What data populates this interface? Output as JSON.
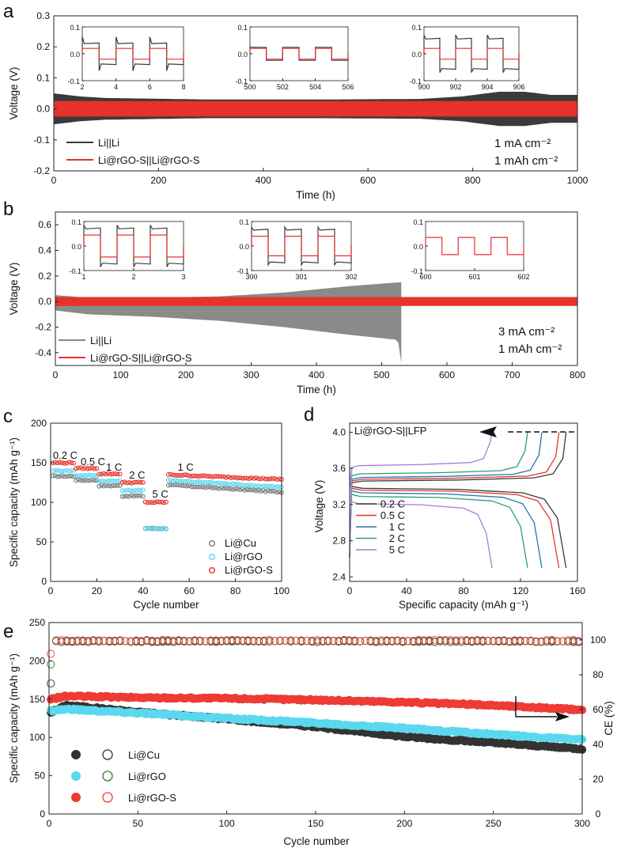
{
  "figure": {
    "labels": {
      "a": "a",
      "b": "b",
      "c": "c",
      "d": "d",
      "e": "e"
    }
  },
  "colors": {
    "black": "#3a3a3a",
    "red": "#e8312a",
    "cyan": "#5ad8ee",
    "blue": "#1f77b4",
    "green": "#2e9e72",
    "purple": "#a57fd0",
    "gray": "#8a8a8a"
  },
  "chart_data": [
    {
      "id": "a",
      "type": "line",
      "xlabel": "Time (h)",
      "ylabel": "Voltage (V)",
      "xlim": [
        0,
        1000
      ],
      "ylim": [
        -0.2,
        0.3
      ],
      "xticks": [
        "0",
        "200",
        "400",
        "600",
        "800",
        "1000"
      ],
      "yticks": [
        "-0.2",
        "-0.1",
        "0.0",
        "0.1",
        "0.2",
        "0.3"
      ],
      "series": [
        {
          "name": "Li||Li",
          "color": "#3a3a3a",
          "envelope_x": [
            0,
            50,
            100,
            300,
            500,
            700,
            780,
            850,
            900,
            950,
            1000
          ],
          "envelope_amp": [
            0.05,
            0.04,
            0.035,
            0.03,
            0.03,
            0.032,
            0.04,
            0.055,
            0.055,
            0.045,
            0.045
          ]
        },
        {
          "name": "Li@rGO-S||Li@rGO-S",
          "color": "#e8312a",
          "envelope_x": [
            0,
            1000
          ],
          "envelope_amp": [
            0.025,
            0.025
          ]
        }
      ],
      "conditions": [
        "1 mA cm⁻²",
        "1 mAh cm⁻²"
      ],
      "insets": [
        {
          "xlim": [
            2,
            8
          ],
          "ylim": [
            -0.1,
            0.1
          ],
          "xticks": [
            "2",
            "4",
            "6",
            "8"
          ],
          "yticks": [
            "-0.1",
            "0.0",
            "0.1"
          ],
          "black_amp": 0.038,
          "red_amp": 0.02,
          "overshoot": 0.025
        },
        {
          "xlim": [
            500,
            506
          ],
          "ylim": [
            -0.1,
            0.1
          ],
          "xticks": [
            "500",
            "502",
            "504",
            "506"
          ],
          "yticks": [
            "-0.1",
            "0.0",
            "0.1"
          ],
          "black_amp": 0.024,
          "red_amp": 0.02,
          "overshoot": 0.0
        },
        {
          "xlim": [
            900,
            906
          ],
          "ylim": [
            -0.1,
            0.1
          ],
          "xticks": [
            "900",
            "902",
            "904",
            "906"
          ],
          "yticks": [
            "-0.1",
            "0.0",
            "0.1"
          ],
          "black_amp": 0.055,
          "red_amp": 0.02,
          "overshoot": 0.015
        }
      ]
    },
    {
      "id": "b",
      "type": "line",
      "xlabel": "Time (h)",
      "ylabel": "Voltage (V)",
      "xlim": [
        0,
        800
      ],
      "ylim": [
        -0.5,
        0.7
      ],
      "xticks": [
        "0",
        "100",
        "200",
        "300",
        "400",
        "500",
        "600",
        "700",
        "800"
      ],
      "yticks": [
        "-0.4",
        "-0.2",
        "0.0",
        "0.2",
        "0.4",
        "0.6"
      ],
      "series": [
        {
          "name": "Li||Li",
          "color": "#8a8a8a",
          "short_circuit_at": 530,
          "envelope_x": [
            0,
            50,
            150,
            250,
            350,
            450,
            525,
            530
          ],
          "envelope_upper": [
            0.05,
            0.03,
            0.03,
            0.04,
            0.07,
            0.12,
            0.15,
            0.15
          ],
          "envelope_lower": [
            -0.07,
            -0.1,
            -0.12,
            -0.15,
            -0.2,
            -0.26,
            -0.3,
            -0.48
          ]
        },
        {
          "name": "Li@rGO-S||Li@rGO-S",
          "color": "#e8312a",
          "envelope_x": [
            0,
            800
          ],
          "envelope_amp": [
            0.035,
            0.035
          ]
        }
      ],
      "conditions": [
        "3 mA cm⁻²",
        "1 mAh cm⁻²"
      ],
      "insets": [
        {
          "xlim": [
            1,
            3
          ],
          "ylim": [
            -0.1,
            0.1
          ],
          "xticks": [
            "1",
            "2",
            "3"
          ],
          "yticks": [
            "-0.1",
            "0.0",
            "0.1"
          ],
          "black_amp": 0.07,
          "red_amp": 0.045,
          "overshoot": 0.015
        },
        {
          "xlim": [
            300,
            302
          ],
          "ylim": [
            -0.1,
            0.1
          ],
          "xticks": [
            "300",
            "301",
            "302"
          ],
          "yticks": [
            "-0.1",
            "0.0",
            "0.1"
          ],
          "black_amp": 0.065,
          "red_amp": 0.04,
          "overshoot": 0.012
        },
        {
          "xlim": [
            600,
            602
          ],
          "ylim": [
            -0.1,
            0.1
          ],
          "xticks": [
            "600",
            "601",
            "602"
          ],
          "yticks": [
            "-0.1",
            "0.0",
            "0.1"
          ],
          "black_amp": 0.0,
          "red_amp": 0.035,
          "overshoot": 0.0
        }
      ]
    },
    {
      "id": "c",
      "type": "scatter",
      "xlabel": "Cycle number",
      "ylabel": "Specific capacity (mAh g⁻¹)",
      "xlim": [
        0,
        100
      ],
      "ylim": [
        0,
        200
      ],
      "xticks": [
        "0",
        "20",
        "40",
        "60",
        "80",
        "100"
      ],
      "yticks": [
        "0",
        "50",
        "100",
        "150",
        "200"
      ],
      "rate_labels": [
        {
          "text": "0.2 C",
          "x": 1,
          "y": 155
        },
        {
          "text": "0.5 C",
          "x": 13,
          "y": 147
        },
        {
          "text": "1 C",
          "x": 24,
          "y": 140
        },
        {
          "text": "2 C",
          "x": 34,
          "y": 130
        },
        {
          "text": "5 C",
          "x": 44,
          "y": 106
        },
        {
          "text": "1 C",
          "x": 55,
          "y": 140
        }
      ],
      "series": [
        {
          "name": "Li@Cu",
          "color": "#7a7a7a",
          "stages": [
            [
              1,
              10,
              133
            ],
            [
              11,
              20,
              128
            ],
            [
              21,
              30,
              121
            ],
            [
              31,
              40,
              108
            ],
            [
              41,
              50,
              67
            ],
            [
              51,
              100,
              122,
              113
            ]
          ]
        },
        {
          "name": "Li@rGO",
          "color": "#5ad8ee",
          "stages": [
            [
              1,
              10,
              140
            ],
            [
              11,
              20,
              134
            ],
            [
              21,
              30,
              127
            ],
            [
              31,
              40,
              115
            ],
            [
              41,
              50,
              67
            ],
            [
              51,
              100,
              128,
              119
            ]
          ]
        },
        {
          "name": "Li@rGO-S",
          "color": "#e8312a",
          "stages": [
            [
              1,
              10,
              150
            ],
            [
              11,
              20,
              143
            ],
            [
              21,
              30,
              136
            ],
            [
              31,
              40,
              125
            ],
            [
              41,
              50,
              100
            ],
            [
              51,
              100,
              135,
              129
            ]
          ]
        }
      ]
    },
    {
      "id": "d",
      "type": "line",
      "title": "Li@rGO-S||LFP",
      "xlabel": "Specific capacity (mAh g⁻¹)",
      "ylabel": "Voltage (V)",
      "xlim": [
        0,
        160
      ],
      "ylim": [
        2.35,
        4.1
      ],
      "xticks": [
        "0",
        "40",
        "80",
        "120",
        "160"
      ],
      "yticks": [
        "2.4",
        "2.8",
        "3.2",
        "3.6",
        "4.0"
      ],
      "series": [
        {
          "name": "0.2 C",
          "color": "#3a3a3a",
          "capacity": 152,
          "charge_plateau": 3.46,
          "discharge_plateau": 3.38
        },
        {
          "name": "0.5 C",
          "color": "#e8312a",
          "capacity": 147,
          "charge_plateau": 3.48,
          "discharge_plateau": 3.36
        },
        {
          "name": "1 C",
          "color": "#1f77b4",
          "capacity": 135,
          "charge_plateau": 3.5,
          "discharge_plateau": 3.33
        },
        {
          "name": "2 C",
          "color": "#2e9e72",
          "capacity": 125,
          "charge_plateau": 3.54,
          "discharge_plateau": 3.29
        },
        {
          "name": "5 C",
          "color": "#a57fd0",
          "capacity": 100,
          "charge_plateau": 3.63,
          "discharge_plateau": 3.21
        }
      ]
    },
    {
      "id": "e",
      "type": "scatter",
      "xlabel": "Cycle number",
      "ylabel": "Specific capacity (mAh g⁻¹)",
      "y2label": "CE (%)",
      "xlim": [
        0,
        300
      ],
      "ylim": [
        0,
        250
      ],
      "y2lim": [
        0,
        110
      ],
      "xticks": [
        "0",
        "50",
        "100",
        "150",
        "200",
        "250",
        "300"
      ],
      "yticks": [
        "0",
        "50",
        "100",
        "150",
        "200",
        "250"
      ],
      "y2ticks": [
        "0",
        "20",
        "40",
        "60",
        "80",
        "100"
      ],
      "series": [
        {
          "name": "Li@Cu",
          "color": "#333333",
          "capacity_points": [
            [
              1,
              133
            ],
            [
              10,
              142
            ],
            [
              50,
              133
            ],
            [
              100,
              124
            ],
            [
              150,
              114
            ],
            [
              200,
              101
            ],
            [
              250,
              93
            ],
            [
              300,
              85
            ]
          ],
          "ce_start": [
            75,
            90,
            95
          ],
          "ce": 99.2
        },
        {
          "name": "Li@rGO",
          "color": "#5ad8ee",
          "capacity_points": [
            [
              1,
              135
            ],
            [
              10,
              137
            ],
            [
              50,
              132
            ],
            [
              100,
              125
            ],
            [
              150,
              119
            ],
            [
              200,
              112
            ],
            [
              250,
              104
            ],
            [
              300,
              97
            ]
          ],
          "ce_start": [
            86,
            93,
            97
          ],
          "ce": 99.4
        },
        {
          "name": "Li@rGO-S",
          "color": "#ee3b35",
          "capacity_points": [
            [
              1,
              150
            ],
            [
              10,
              154
            ],
            [
              50,
              152
            ],
            [
              100,
              151
            ],
            [
              150,
              149
            ],
            [
              200,
              146
            ],
            [
              250,
              142
            ],
            [
              300,
              136
            ]
          ],
          "ce_start": [
            92,
            96,
            98
          ],
          "ce": 99.6
        }
      ]
    }
  ]
}
